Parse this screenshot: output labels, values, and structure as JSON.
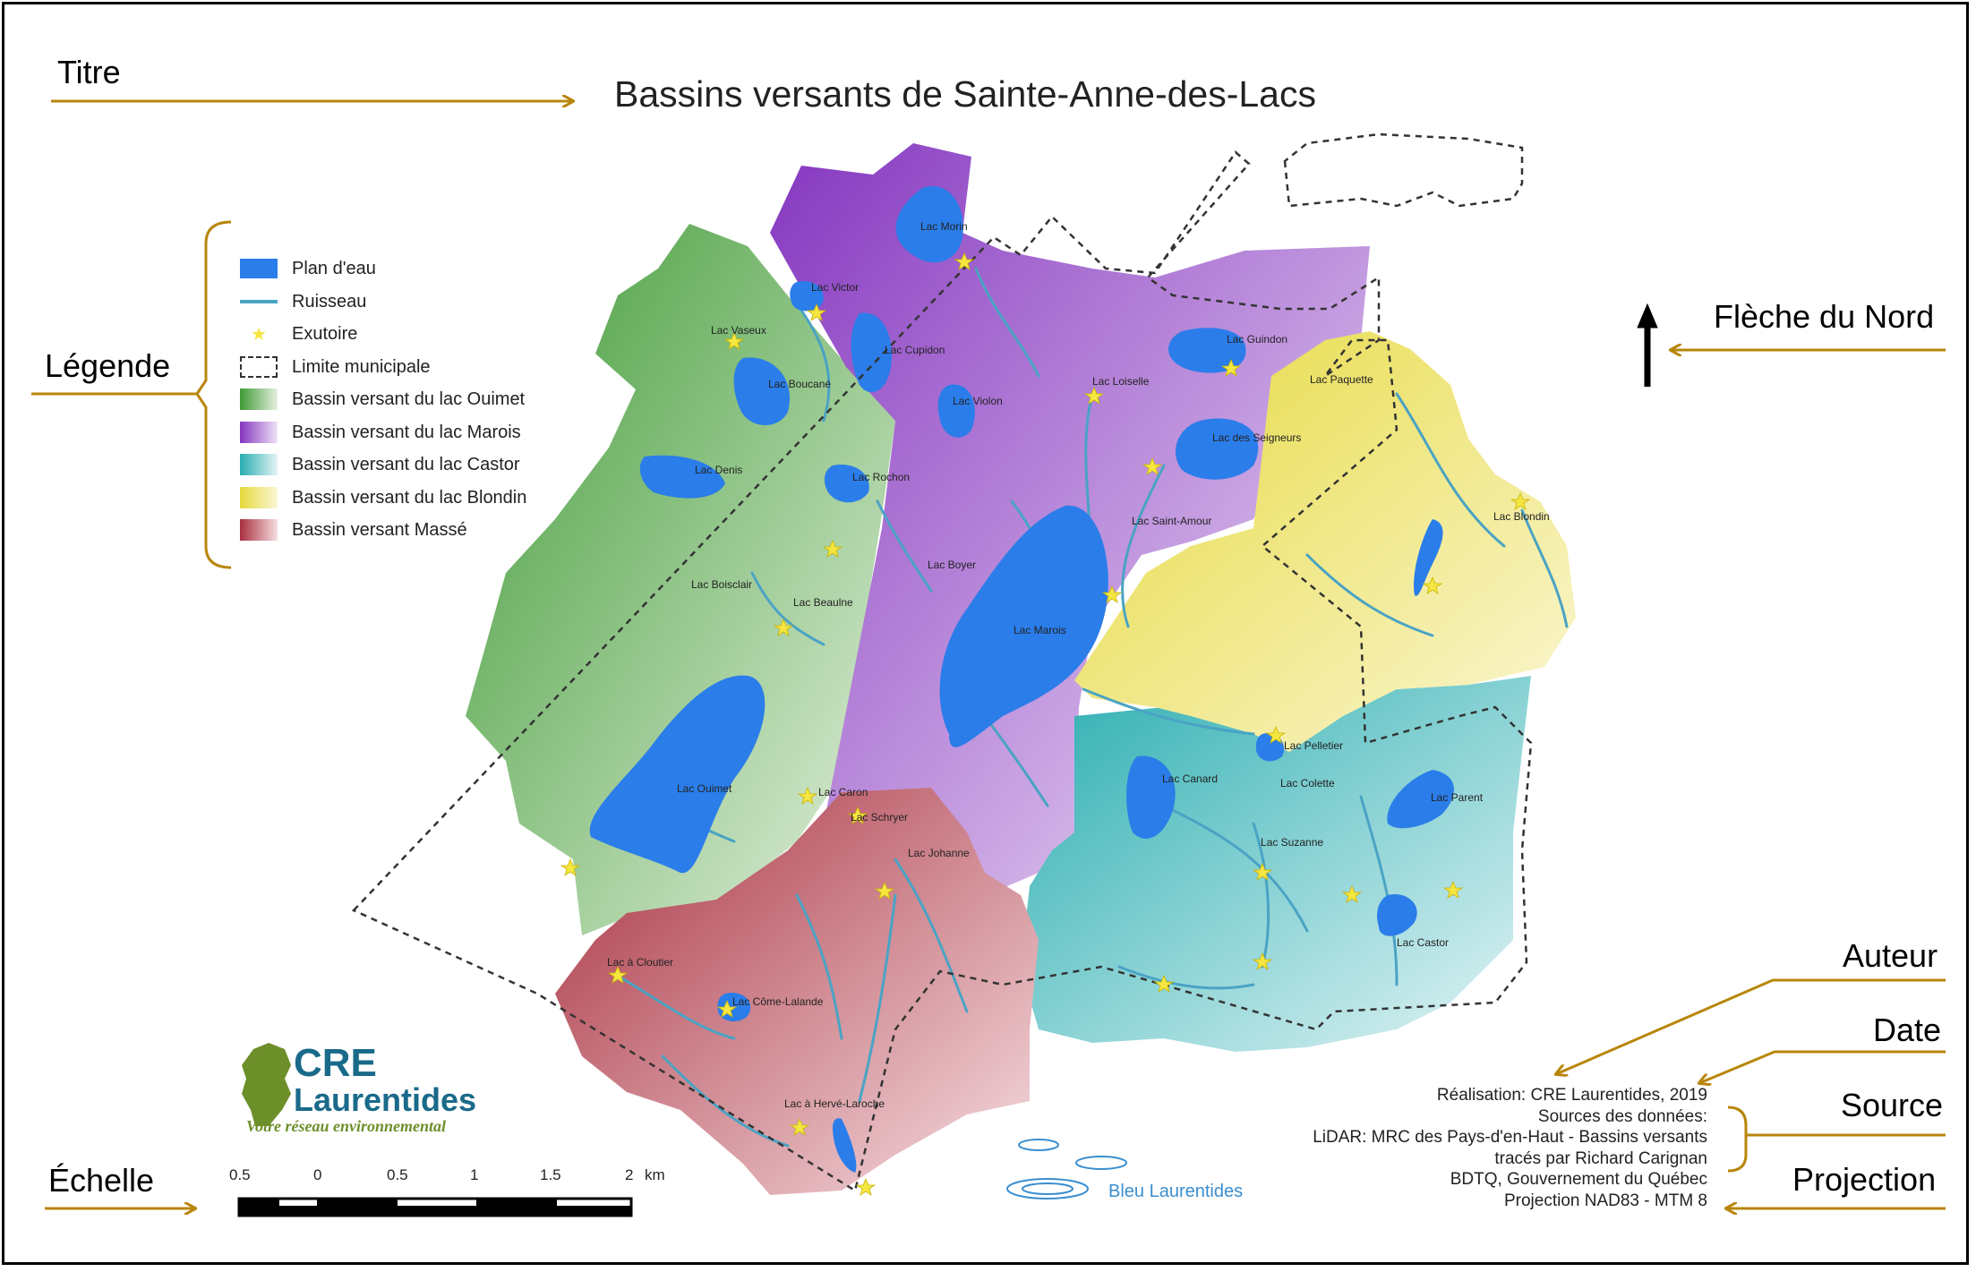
{
  "title": "Bassins versants de Sainte-Anne-des-Lacs",
  "callouts": {
    "titre": "Titre",
    "legende": "Légende",
    "fleche_nord": "Flèche du Nord",
    "auteur": "Auteur",
    "date": "Date",
    "source": "Source",
    "echelle": "Échelle",
    "projection": "Projection"
  },
  "legend": [
    {
      "label": "Plan d'eau",
      "kind": "water",
      "color": "#2b7de9"
    },
    {
      "label": "Ruisseau",
      "kind": "stream",
      "color": "#4aa3c4"
    },
    {
      "label": "Exutoire",
      "kind": "star",
      "color": "#f5e642"
    },
    {
      "label": "Limite municipale",
      "kind": "dashed",
      "color": "#333333"
    },
    {
      "label": "Bassin versant du lac Ouimet",
      "kind": "gradient",
      "color": "#4a9a3c"
    },
    {
      "label": "Bassin versant du lac Marois",
      "kind": "gradient",
      "color": "#8a3fc1"
    },
    {
      "label": "Bassin versant du lac Castor",
      "kind": "gradient",
      "color": "#2eb5b5"
    },
    {
      "label": "Bassin versant du lac Blondin",
      "kind": "gradient",
      "color": "#e6d940"
    },
    {
      "label": "Bassin versant Massé",
      "kind": "gradient",
      "color": "#b03a48"
    }
  ],
  "lakes": [
    "Lac Morin",
    "Lac Victor",
    "Lac Vaseux",
    "Lac Cupidon",
    "Lac Boucané",
    "Lac Violon",
    "Lac Loiselle",
    "Lac Guindon",
    "Lac Paquette",
    "Lac des Seigneurs",
    "Lac Denis",
    "Lac Rochon",
    "Lac Saint-Amour",
    "Lac Blondin",
    "Lac Boyer",
    "Lac Boisclair",
    "Lac Beaulne",
    "Lac Marois",
    "Lac Pelletier",
    "Lac Canard",
    "Lac Colette",
    "Lac Parent",
    "Lac Ouimet",
    "Lac Caron",
    "Lac Schryer",
    "Lac Suzanne",
    "Lac Johanne",
    "Lac Castor",
    "Lac à Cloutier",
    "Lac Côme-Lalande",
    "Lac à Hervé-Laroche"
  ],
  "logo": {
    "name": "CRE",
    "name2": "Laurentides",
    "tagline": "Votre réseau environnemental",
    "partner": "Bleu Laurentides"
  },
  "scale": {
    "labels": [
      "0.5",
      "0",
      "0.5",
      "1",
      "1.5",
      "2"
    ],
    "unit": "km"
  },
  "credits": {
    "author": "Réalisation: CRE Laurentides, 2019",
    "sources_heading": "Sources des données:",
    "source1": "LiDAR: MRC des Pays-d'en-Haut - Bassins versants",
    "source2": "tracés par Richard Carignan",
    "source3": "BDTQ, Gouvernement du Québec",
    "projection": "Projection NAD83 - MTM 8"
  },
  "colors": {
    "callout_arrow": "#b8860b",
    "water": "#2b7de9",
    "stream": "#4aa3c4",
    "outlet": "#f5e642"
  }
}
